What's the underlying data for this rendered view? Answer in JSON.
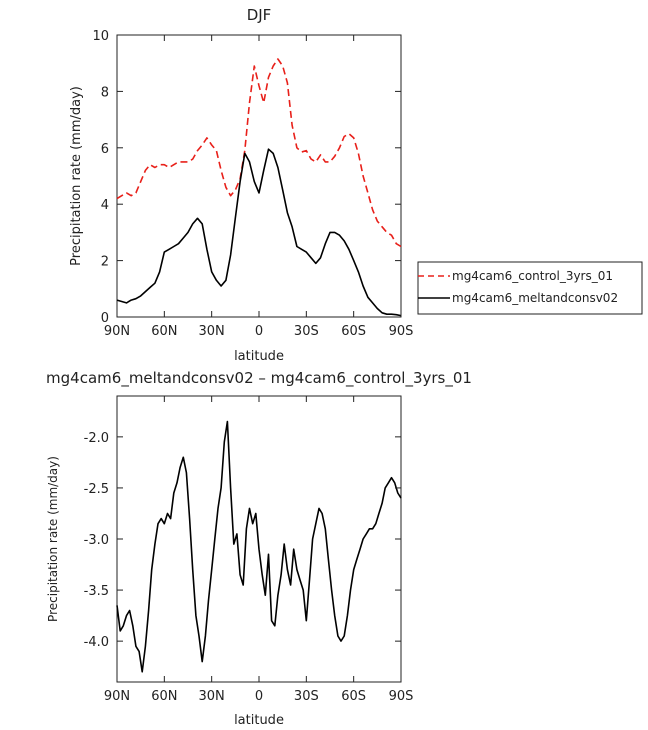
{
  "chart_data": [
    {
      "type": "line",
      "title": "DJF",
      "xlabel": "latitude",
      "ylabel": "Precipitation rate (mm/day)",
      "xlim": [
        90,
        -90
      ],
      "ylim": [
        0,
        10
      ],
      "x_ticks": [
        90,
        60,
        30,
        0,
        -30,
        -60,
        -90
      ],
      "x_tick_labels": [
        "90N",
        "60N",
        "30N",
        "0",
        "30S",
        "60S",
        "90S"
      ],
      "y_ticks": [
        0,
        2,
        4,
        6,
        8,
        10
      ],
      "y_tick_labels": [
        "0",
        "2",
        "4",
        "6",
        "8",
        "10"
      ],
      "legend_position": "right",
      "series": [
        {
          "name": "mg4cam6_control_3yrs_01",
          "color": "#e8201a",
          "dash": "dashed",
          "x": [
            90,
            87,
            84,
            81,
            78,
            75,
            72,
            69,
            66,
            63,
            60,
            57,
            54,
            51,
            48,
            45,
            42,
            39,
            36,
            33,
            30,
            27,
            24,
            21,
            18,
            15,
            12,
            9,
            6,
            3,
            0,
            -3,
            -6,
            -9,
            -12,
            -15,
            -18,
            -21,
            -24,
            -27,
            -30,
            -33,
            -36,
            -39,
            -42,
            -45,
            -48,
            -51,
            -54,
            -57,
            -60,
            -63,
            -66,
            -69,
            -72,
            -75,
            -78,
            -81,
            -84,
            -87,
            -90
          ],
          "y": [
            4.2,
            4.3,
            4.4,
            4.3,
            4.4,
            4.8,
            5.2,
            5.4,
            5.3,
            5.4,
            5.4,
            5.3,
            5.4,
            5.5,
            5.5,
            5.5,
            5.6,
            5.9,
            6.1,
            6.35,
            6.1,
            5.9,
            5.2,
            4.6,
            4.3,
            4.5,
            4.9,
            5.9,
            7.6,
            8.9,
            8.2,
            7.6,
            8.5,
            8.9,
            9.15,
            8.9,
            8.3,
            6.8,
            6.0,
            5.85,
            5.9,
            5.6,
            5.5,
            5.75,
            5.5,
            5.5,
            5.7,
            6.0,
            6.4,
            6.5,
            6.35,
            5.8,
            5.0,
            4.4,
            3.8,
            3.4,
            3.2,
            3.0,
            2.9,
            2.6,
            2.5
          ]
        },
        {
          "name": "mg4cam6_meltandconsv02",
          "color": "#000000",
          "dash": "solid",
          "x": [
            90,
            87,
            84,
            81,
            78,
            75,
            72,
            69,
            66,
            63,
            60,
            57,
            54,
            51,
            48,
            45,
            42,
            39,
            36,
            33,
            30,
            27,
            24,
            21,
            18,
            15,
            12,
            9,
            6,
            3,
            0,
            -3,
            -6,
            -9,
            -12,
            -15,
            -18,
            -21,
            -24,
            -27,
            -30,
            -33,
            -36,
            -39,
            -42,
            -45,
            -48,
            -51,
            -54,
            -57,
            -60,
            -63,
            -66,
            -69,
            -72,
            -75,
            -78,
            -81,
            -84,
            -87,
            -90
          ],
          "y": [
            0.6,
            0.55,
            0.5,
            0.6,
            0.65,
            0.75,
            0.9,
            1.05,
            1.2,
            1.6,
            2.3,
            2.4,
            2.5,
            2.6,
            2.8,
            3.0,
            3.3,
            3.5,
            3.3,
            2.4,
            1.6,
            1.3,
            1.1,
            1.3,
            2.2,
            3.5,
            4.8,
            5.8,
            5.5,
            4.8,
            4.4,
            5.2,
            5.95,
            5.8,
            5.3,
            4.5,
            3.7,
            3.2,
            2.5,
            2.4,
            2.3,
            2.1,
            1.9,
            2.1,
            2.6,
            3.0,
            3.0,
            2.9,
            2.7,
            2.4,
            2.0,
            1.6,
            1.1,
            0.7,
            0.5,
            0.3,
            0.15,
            0.1,
            0.1,
            0.08,
            0.05
          ]
        }
      ]
    },
    {
      "type": "line",
      "title": "mg4cam6_meltandconsv02 – mg4cam6_control_3yrs_01",
      "xlabel": "latitude",
      "ylabel": "Precipitation rate (mm/day)",
      "xlim": [
        90,
        -90
      ],
      "ylim": [
        -4.4,
        -1.6
      ],
      "x_ticks": [
        90,
        60,
        30,
        0,
        -30,
        -60,
        -90
      ],
      "x_tick_labels": [
        "90N",
        "60N",
        "30N",
        "0",
        "30S",
        "60S",
        "90S"
      ],
      "y_ticks": [
        -4.0,
        -3.5,
        -3.0,
        -2.5,
        -2.0
      ],
      "y_tick_labels": [
        "-4.0",
        "-3.5",
        "-3.0",
        "-2.5",
        "-2.0"
      ],
      "series": [
        {
          "color": "#000000",
          "dash": "solid",
          "x": [
            90,
            88,
            86,
            84,
            82,
            80,
            78,
            76,
            74,
            72,
            70,
            68,
            66,
            64,
            62,
            60,
            58,
            56,
            54,
            52,
            50,
            48,
            46,
            44,
            42,
            40,
            38,
            36,
            34,
            32,
            30,
            28,
            26,
            24,
            22,
            20,
            18,
            16,
            14,
            12,
            10,
            8,
            6,
            4,
            2,
            0,
            -2,
            -4,
            -6,
            -8,
            -10,
            -12,
            -14,
            -16,
            -18,
            -20,
            -22,
            -24,
            -26,
            -28,
            -30,
            -32,
            -34,
            -36,
            -38,
            -40,
            -42,
            -44,
            -46,
            -48,
            -50,
            -52,
            -54,
            -56,
            -58,
            -60,
            -62,
            -64,
            -66,
            -68,
            -70,
            -72,
            -74,
            -76,
            -78,
            -80,
            -82,
            -84,
            -86,
            -88,
            -90
          ],
          "y": [
            -3.65,
            -3.9,
            -3.85,
            -3.75,
            -3.7,
            -3.85,
            -4.05,
            -4.1,
            -4.3,
            -4.05,
            -3.7,
            -3.3,
            -3.05,
            -2.85,
            -2.8,
            -2.85,
            -2.75,
            -2.8,
            -2.55,
            -2.45,
            -2.3,
            -2.2,
            -2.35,
            -2.8,
            -3.3,
            -3.75,
            -3.95,
            -4.2,
            -3.95,
            -3.6,
            -3.3,
            -3.0,
            -2.7,
            -2.5,
            -2.05,
            -1.85,
            -2.5,
            -3.05,
            -2.95,
            -3.35,
            -3.45,
            -2.9,
            -2.7,
            -2.85,
            -2.75,
            -3.1,
            -3.35,
            -3.55,
            -3.15,
            -3.8,
            -3.85,
            -3.55,
            -3.35,
            -3.05,
            -3.3,
            -3.45,
            -3.1,
            -3.3,
            -3.4,
            -3.5,
            -3.8,
            -3.4,
            -3.0,
            -2.85,
            -2.7,
            -2.75,
            -2.9,
            -3.2,
            -3.5,
            -3.75,
            -3.95,
            -4.0,
            -3.95,
            -3.75,
            -3.5,
            -3.3,
            -3.2,
            -3.1,
            -3.0,
            -2.95,
            -2.9,
            -2.9,
            -2.85,
            -2.75,
            -2.65,
            -2.5,
            -2.45,
            -2.4,
            -2.45,
            -2.55,
            -2.6
          ]
        }
      ]
    }
  ]
}
